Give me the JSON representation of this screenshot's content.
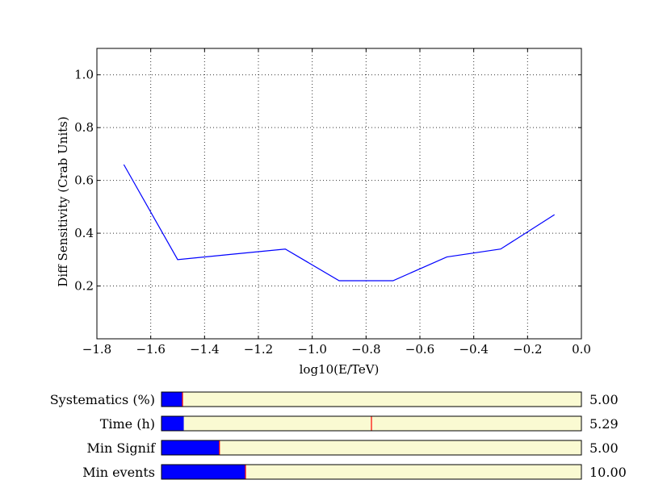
{
  "chart_data": {
    "type": "line",
    "title": "",
    "xlabel": "log10(E/TeV)",
    "ylabel": "Diff Sensitivity (Crab Units)",
    "xlim": [
      -1.8,
      0.0
    ],
    "ylim": [
      0.0,
      1.1
    ],
    "x_ticks": [
      -1.8,
      -1.6,
      -1.4,
      -1.2,
      -1.0,
      -0.8,
      -0.6,
      -0.4,
      -0.2,
      0.0
    ],
    "x_tick_labels": [
      "−1.8",
      "−1.6",
      "−1.4",
      "−1.2",
      "−1.0",
      "−0.8",
      "−0.6",
      "−0.4",
      "−0.2",
      "0.0"
    ],
    "y_ticks": [
      0.2,
      0.4,
      0.6,
      0.8,
      1.0
    ],
    "y_tick_labels": [
      "0.2",
      "0.4",
      "0.6",
      "0.8",
      "1.0"
    ],
    "grid": true,
    "series": [
      {
        "color": "#0000ff",
        "x": [
          -1.7,
          -1.5,
          -1.3,
          -1.1,
          -0.9,
          -0.7,
          -0.5,
          -0.3,
          -0.1
        ],
        "y": [
          0.66,
          0.3,
          0.32,
          0.34,
          0.22,
          0.22,
          0.31,
          0.34,
          0.47
        ]
      }
    ]
  },
  "sliders": [
    {
      "label": "Systematics (%)",
      "value_text": "5.00",
      "fill_fraction": 0.05,
      "marker_fraction": 0.05
    },
    {
      "label": "Time (h)",
      "value_text": "5.29",
      "fill_fraction": 0.053,
      "marker_fraction": 0.5
    },
    {
      "label": "Min Signif",
      "value_text": "5.00",
      "fill_fraction": 0.138,
      "marker_fraction": 0.138
    },
    {
      "label": "Min events",
      "value_text": "10.00",
      "fill_fraction": 0.2,
      "marker_fraction": 0.2
    }
  ],
  "colors": {
    "line": "#0000ff",
    "slider_fill": "#0000ff",
    "slider_track": "#fafad2",
    "slider_marker": "#ff0000"
  }
}
